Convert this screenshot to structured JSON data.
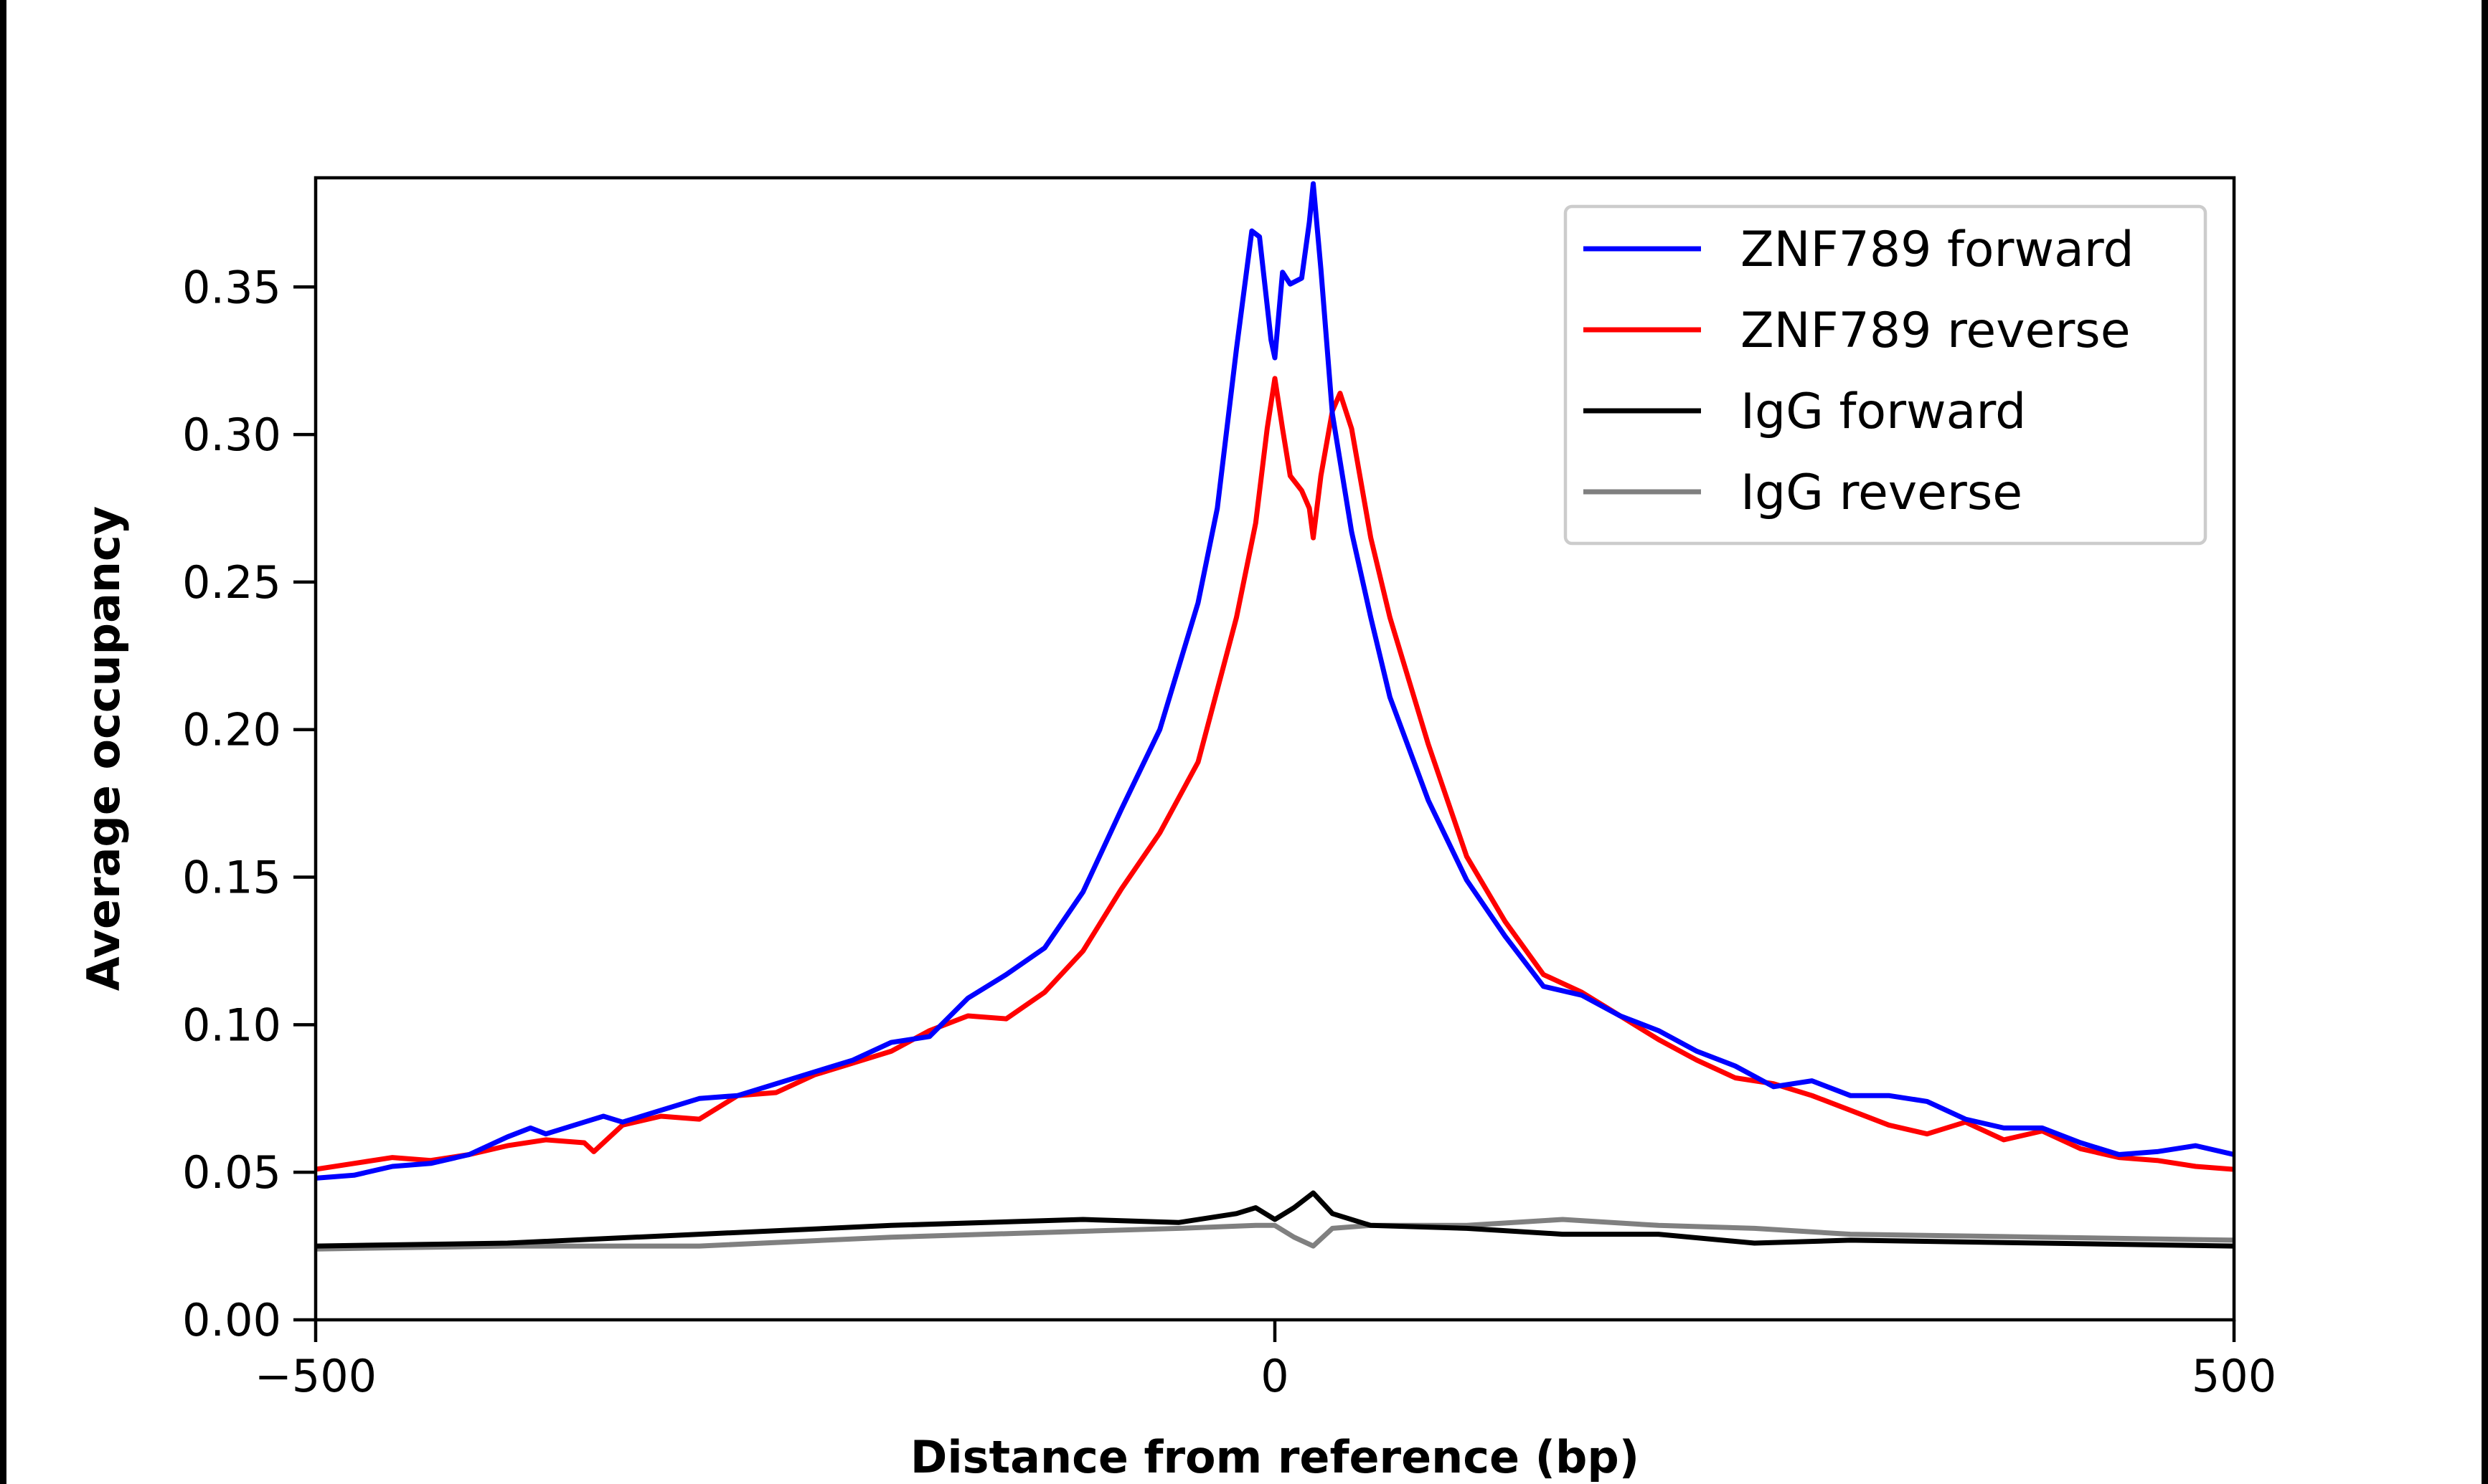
{
  "chart_data": {
    "type": "line",
    "title": "",
    "xlabel": "Distance from reference (bp)",
    "ylabel": "Average occupancy",
    "xlim": [
      -500,
      500
    ],
    "ylim": [
      0,
      0.387
    ],
    "xticks": [
      -500,
      0,
      500
    ],
    "xtick_labels": [
      "−500",
      "0",
      "500"
    ],
    "yticks": [
      0,
      0.05,
      0.1,
      0.15,
      0.2,
      0.25,
      0.3,
      0.35
    ],
    "ytick_labels": [
      "0.00",
      "0.05",
      "0.10",
      "0.15",
      "0.20",
      "0.25",
      "0.30",
      "0.35"
    ],
    "grid": false,
    "legend_position": "top-right",
    "series": [
      {
        "name": "ZNF789 forward",
        "color": "#0000ff",
        "x": [
          -500,
          -480,
          -460,
          -440,
          -420,
          -400,
          -388,
          -380,
          -360,
          -350,
          -340,
          -320,
          -300,
          -280,
          -260,
          -240,
          -220,
          -200,
          -180,
          -160,
          -140,
          -120,
          -100,
          -80,
          -60,
          -40,
          -30,
          -20,
          -12,
          -8,
          -2,
          0,
          4,
          8,
          14,
          18,
          20,
          24,
          30,
          40,
          50,
          60,
          80,
          100,
          120,
          140,
          160,
          180,
          200,
          220,
          240,
          260,
          280,
          300,
          320,
          340,
          360,
          380,
          400,
          420,
          440,
          460,
          480,
          500
        ],
        "y": [
          0.048,
          0.049,
          0.052,
          0.053,
          0.056,
          0.062,
          0.065,
          0.063,
          0.067,
          0.069,
          0.067,
          0.071,
          0.075,
          0.076,
          0.08,
          0.084,
          0.088,
          0.094,
          0.096,
          0.109,
          0.117,
          0.126,
          0.145,
          0.173,
          0.2,
          0.243,
          0.275,
          0.329,
          0.369,
          0.367,
          0.332,
          0.326,
          0.355,
          0.351,
          0.353,
          0.372,
          0.385,
          0.356,
          0.307,
          0.267,
          0.238,
          0.211,
          0.176,
          0.149,
          0.13,
          0.113,
          0.11,
          0.103,
          0.098,
          0.091,
          0.086,
          0.079,
          0.081,
          0.076,
          0.076,
          0.074,
          0.068,
          0.065,
          0.065,
          0.06,
          0.056,
          0.057,
          0.059,
          0.056
        ]
      },
      {
        "name": "ZNF789 reverse",
        "color": "#ff0000",
        "x": [
          -500,
          -480,
          -460,
          -440,
          -420,
          -400,
          -380,
          -360,
          -355,
          -340,
          -320,
          -300,
          -280,
          -260,
          -240,
          -220,
          -200,
          -180,
          -160,
          -140,
          -120,
          -100,
          -80,
          -60,
          -40,
          -20,
          -10,
          -4,
          0,
          4,
          8,
          14,
          18,
          20,
          24,
          30,
          34,
          40,
          50,
          60,
          80,
          100,
          120,
          140,
          160,
          180,
          200,
          220,
          240,
          260,
          280,
          300,
          320,
          340,
          360,
          380,
          400,
          420,
          440,
          460,
          480,
          500
        ],
        "y": [
          0.051,
          0.053,
          0.055,
          0.054,
          0.056,
          0.059,
          0.061,
          0.06,
          0.057,
          0.066,
          0.069,
          0.068,
          0.076,
          0.077,
          0.083,
          0.087,
          0.091,
          0.098,
          0.103,
          0.102,
          0.111,
          0.125,
          0.146,
          0.165,
          0.189,
          0.238,
          0.27,
          0.302,
          0.319,
          0.302,
          0.286,
          0.281,
          0.275,
          0.265,
          0.286,
          0.308,
          0.314,
          0.302,
          0.265,
          0.238,
          0.195,
          0.157,
          0.135,
          0.117,
          0.111,
          0.103,
          0.095,
          0.088,
          0.082,
          0.08,
          0.076,
          0.071,
          0.066,
          0.063,
          0.067,
          0.061,
          0.064,
          0.058,
          0.055,
          0.054,
          0.052,
          0.051
        ]
      },
      {
        "name": "IgG forward",
        "color": "#000000",
        "x": [
          -500,
          -400,
          -300,
          -200,
          -100,
          -50,
          -20,
          -10,
          0,
          10,
          20,
          30,
          50,
          100,
          150,
          200,
          250,
          300,
          400,
          500
        ],
        "y": [
          0.025,
          0.026,
          0.029,
          0.032,
          0.034,
          0.033,
          0.036,
          0.038,
          0.034,
          0.038,
          0.043,
          0.036,
          0.032,
          0.031,
          0.029,
          0.029,
          0.026,
          0.027,
          0.026,
          0.025
        ]
      },
      {
        "name": "IgG reverse",
        "color": "#808080",
        "x": [
          -500,
          -400,
          -300,
          -200,
          -100,
          -50,
          -10,
          0,
          10,
          20,
          30,
          50,
          100,
          150,
          200,
          250,
          300,
          400,
          500
        ],
        "y": [
          0.024,
          0.025,
          0.025,
          0.028,
          0.03,
          0.031,
          0.032,
          0.032,
          0.028,
          0.025,
          0.031,
          0.032,
          0.032,
          0.034,
          0.032,
          0.031,
          0.029,
          0.028,
          0.027
        ]
      }
    ]
  }
}
